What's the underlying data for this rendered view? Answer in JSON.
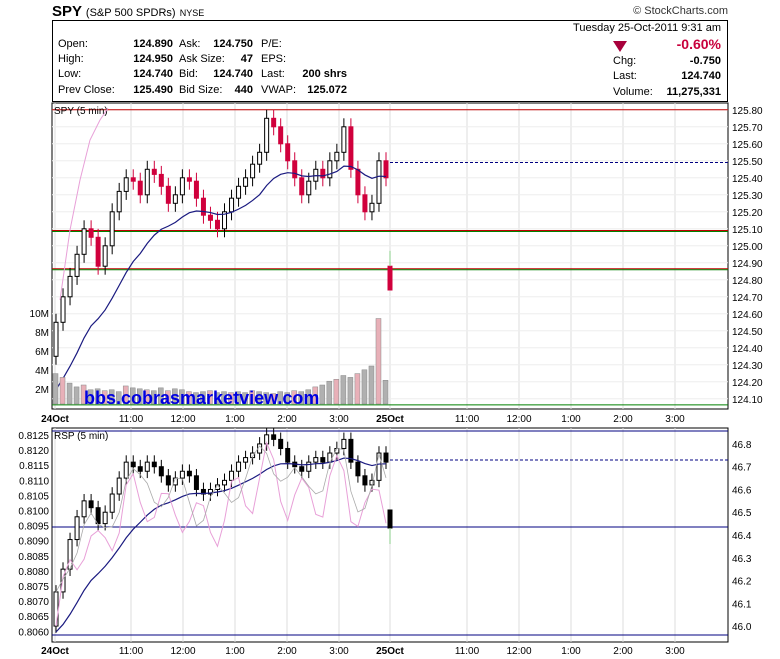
{
  "header": {
    "symbol": "SPY",
    "fullname": "(S&P 500 SPDRs)",
    "exchange": "NYSE",
    "brand": "© StockCharts.com",
    "date_line": "Tuesday 25-Oct-2011 9:31 am",
    "change_pct": "-0.60%",
    "quote": {
      "open_label": "Open:",
      "open": "124.890",
      "high_label": "High:",
      "high": "124.950",
      "low_label": "Low:",
      "low": "124.740",
      "prev_close_label": "Prev Close:",
      "prev_close": "125.490",
      "ask_label": "Ask:",
      "ask": "124.750",
      "ask_size_label": "Ask Size:",
      "ask_size": "47",
      "bid_label": "Bid:",
      "bid": "124.740",
      "bid_size_label": "Bid Size:",
      "bid_size": "440",
      "pe_label": "P/E:",
      "eps_label": "EPS:",
      "last_label": "Last:",
      "last_shrs": "200 shrs",
      "vwap_label": "VWAP:",
      "vwap": "125.072",
      "chg_label": "Chg:",
      "chg": "-0.750",
      "last2_label": "Last:",
      "last2": "124.740",
      "volume_label": "Volume:",
      "volume": "11,275,331"
    }
  },
  "colors": {
    "up": "#000000",
    "down": "#d0003c",
    "ma": "#1a1a80",
    "green_line": "#008000",
    "red_line": "#c00000",
    "blue_line": "#000080",
    "pink": "#e8a0d8",
    "gray_bar": "#b0b0b0",
    "pink_bar": "#e8b0b8"
  },
  "chart_data": [
    {
      "type": "candlestick",
      "label": "SPY (5 min)",
      "yticks": [
        "125.80",
        "125.70",
        "125.60",
        "125.50",
        "125.40",
        "125.30",
        "125.20",
        "125.10",
        "125.00",
        "124.90",
        "124.80",
        "124.70",
        "124.60",
        "124.50",
        "124.40",
        "124.30",
        "124.20",
        "124.10"
      ],
      "ylim": [
        124.04,
        125.84
      ],
      "hlines": {
        "red": [
          125.8,
          125.09,
          124.865
        ],
        "green": [
          125.09,
          124.865,
          124.07
        ],
        "blue_dashed": 125.49
      },
      "volume_ticks": [
        "10M",
        "8M",
        "6M",
        "4M",
        "2M"
      ],
      "xticks": [
        "24Oct",
        "11:00",
        "12:00",
        "1:00",
        "2:00",
        "3:00",
        "25Oct",
        "11:00",
        "12:00",
        "1:00",
        "2:00",
        "3:00"
      ],
      "watermark": "bbs.cobrasmarketview.com"
    },
    {
      "type": "candlestick",
      "label": "RSP (5 min)",
      "yticks_left": [
        "0.8125",
        "0.8120",
        "0.8115",
        "0.8110",
        "0.8105",
        "0.8100",
        "0.8095",
        "0.8090",
        "0.8085",
        "0.8080",
        "0.8075",
        "0.8070",
        "0.8065",
        "0.8060"
      ],
      "yticks_right": [
        "46.8",
        "46.7",
        "46.6",
        "46.5",
        "46.4",
        "46.3",
        "46.2",
        "46.1",
        "46.0"
      ],
      "ylim_right": [
        45.93,
        46.87
      ],
      "xticks": [
        "24Oct",
        "11:00",
        "12:00",
        "1:00",
        "2:00",
        "3:00",
        "25Oct",
        "11:00",
        "12:00",
        "1:00",
        "2:00",
        "3:00"
      ]
    }
  ]
}
